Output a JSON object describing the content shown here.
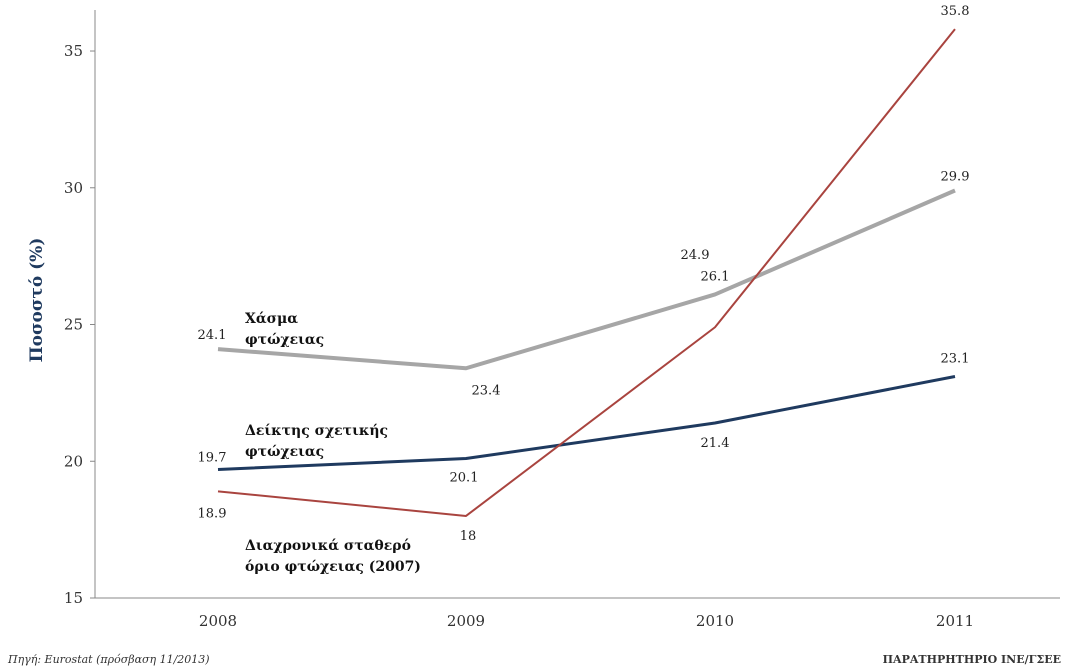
{
  "chart_data": {
    "type": "line",
    "ylabel": "Ποσοστό (%)",
    "xlabel": "",
    "categories": [
      "2008",
      "2009",
      "2010",
      "2011"
    ],
    "ylim": [
      15,
      36.5
    ],
    "yticks": [
      15,
      20,
      25,
      30,
      35
    ],
    "grid": false,
    "series": [
      {
        "name": "Χάσμα φτώχειας",
        "color": "#a6a6a6",
        "values": [
          24.1,
          23.4,
          26.1,
          29.9
        ]
      },
      {
        "name": "Δείκτης σχετικής φτώχειας",
        "color": "#1f3a5f",
        "values": [
          19.7,
          20.1,
          21.4,
          23.1
        ]
      },
      {
        "name": "Διαχρονικά σταθερό όριο φτώχειας (2007)",
        "color": "#a9443f",
        "values": [
          18.9,
          18,
          24.9,
          35.8
        ]
      }
    ]
  },
  "labels": {
    "gap": [
      "Χάσμα",
      "φτώχειας"
    ],
    "relative": [
      "Δείκτης σχετικής",
      "φτώχειας"
    ],
    "fixed": [
      "Διαχρονικά σταθερό",
      "όριο φτώχειας (2007)"
    ]
  },
  "footer": {
    "source": "Πηγή: Eurostat (πρόσβαση 11/2013)",
    "credit": "ΠΑΡΑΤΗΡΗΤΗΡΙΟ ΙΝΕ/ΓΣΕΕ"
  }
}
